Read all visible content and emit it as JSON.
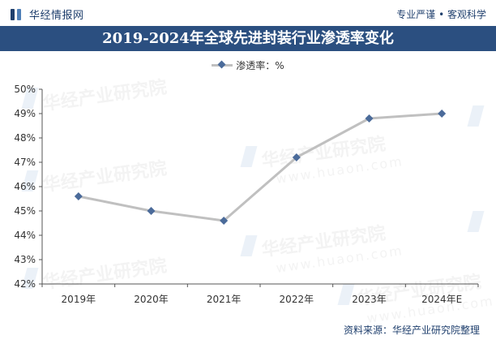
{
  "header": {
    "brand": "华经情报网",
    "tagline": "专业严谨 • 客观科学"
  },
  "title": "2019-2024年全球先进封装行业渗透率变化",
  "legend_label": "渗透率：%",
  "source": "资料来源：华经产业研究院整理",
  "watermark": {
    "text": "华经产业研究院",
    "url": "www.huaon.com"
  },
  "colors": {
    "title_band": "#2b4f80",
    "line": "#c0c0c0",
    "marker": "#4b6b9a",
    "brand": "#1f3f6d"
  },
  "chart_data": {
    "type": "line",
    "categories": [
      "2019年",
      "2020年",
      "2021年",
      "2022年",
      "2023年",
      "2024年E"
    ],
    "series": [
      {
        "name": "渗透率：%",
        "values": [
          45.6,
          45.0,
          44.6,
          47.2,
          48.8,
          49.0
        ]
      }
    ],
    "yticks": [
      "42%",
      "43%",
      "44%",
      "45%",
      "46%",
      "47%",
      "48%",
      "49%",
      "50%"
    ],
    "ylim": [
      42,
      50
    ],
    "grid": false,
    "legend_position": "top-center"
  }
}
